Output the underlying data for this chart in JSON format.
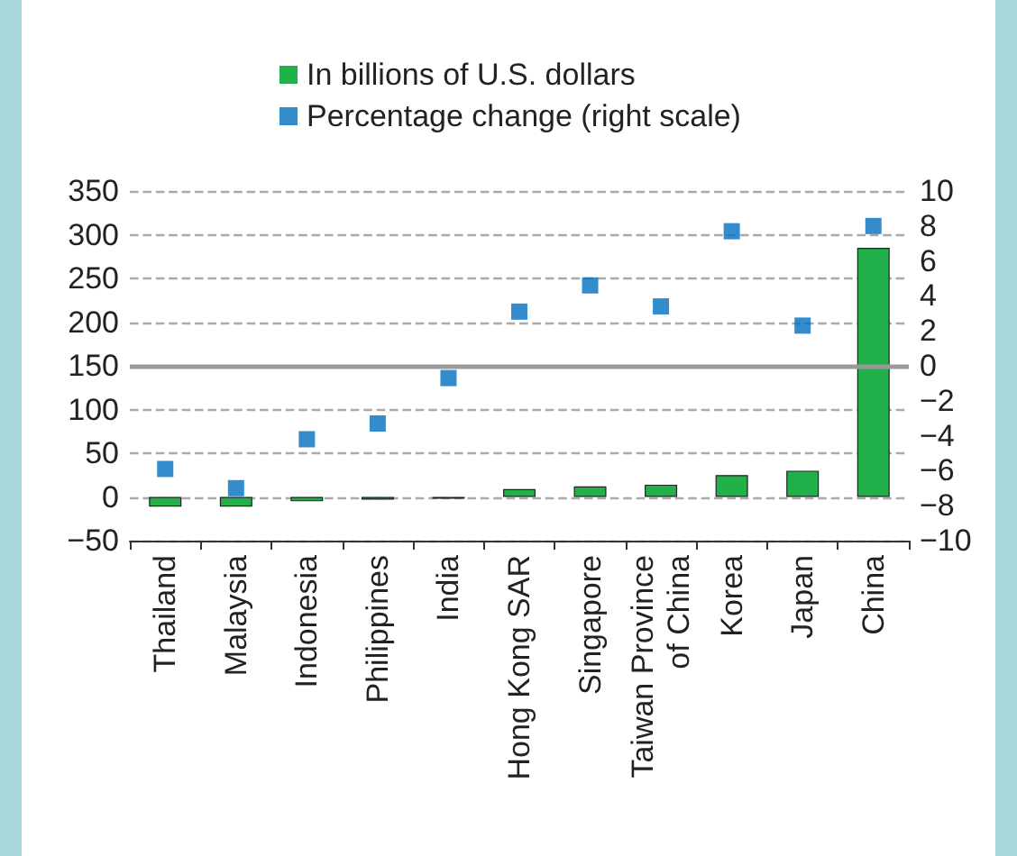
{
  "chart_data": {
    "type": "bar",
    "categories": [
      "Thailand",
      "Malaysia",
      "Indonesia",
      "Philippines",
      "India",
      "Hong Kong SAR",
      "Singapore",
      "Taiwan Province of China",
      "Korea",
      "Japan",
      "China"
    ],
    "series": [
      {
        "name": "In billions of U.S. dollars",
        "color": "#22b04b",
        "values": [
          -11,
          -11,
          -5,
          -3,
          -2,
          9,
          12,
          14,
          25,
          30,
          285
        ]
      },
      {
        "name": "Percentage change (right scale)",
        "type": "scatter",
        "axis": "y2",
        "color": "#0070c0",
        "values": [
          -5.9,
          -7.0,
          -4.2,
          -3.3,
          -0.7,
          3.1,
          4.6,
          3.4,
          7.7,
          2.3,
          8.0
        ]
      }
    ],
    "ylim": [
      -50,
      350
    ],
    "yticks": [
      -50,
      0,
      50,
      100,
      150,
      200,
      250,
      300,
      350
    ],
    "y2lim": [
      -10,
      10
    ],
    "y2ticks": [
      -10,
      -8,
      -6,
      -4,
      -2,
      0,
      2,
      4,
      6,
      8,
      10
    ],
    "ref_lines": [
      {
        "axis": "y2",
        "value": 0,
        "color": "#999999",
        "line_style": "solid"
      }
    ],
    "grid": "y",
    "legend": "top",
    "marker": "square"
  }
}
